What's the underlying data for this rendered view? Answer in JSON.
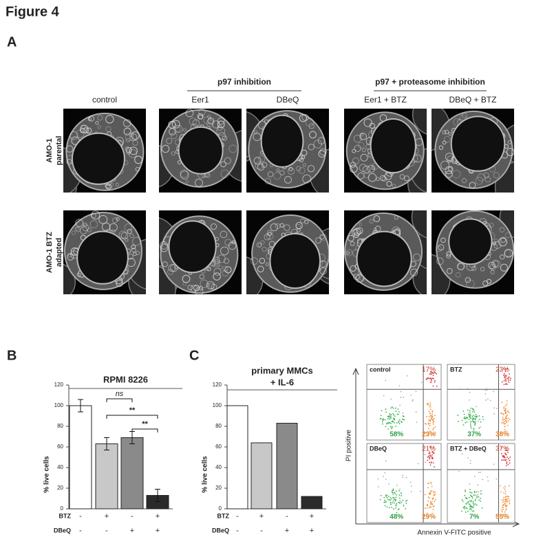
{
  "figure_title": "Figure 4",
  "panel_labels": [
    "A",
    "B",
    "C"
  ],
  "panel_a": {
    "group_headers": [
      "p97 inhibition",
      "p97 + proteasome inhibition"
    ],
    "columns": [
      "control",
      "Eer1",
      "DBeQ",
      "Eer1 + BTZ",
      "DBeQ + BTZ"
    ],
    "rows": [
      [
        "AMO-1",
        "parental"
      ],
      [
        "AMO-1 BTZ",
        "adapted"
      ]
    ]
  },
  "chart_data": [
    {
      "type": "bar",
      "title": "RPMI 8226",
      "ylabel": "% live cells",
      "categories": [
        null,
        null,
        null,
        null
      ],
      "values": [
        100,
        63,
        69,
        13
      ],
      "errors": [
        6,
        6,
        6,
        6
      ],
      "colors": [
        "#ffffff",
        "#c8c8c8",
        "#8a8a8a",
        "#2b2b2b"
      ],
      "ylim": [
        0,
        120
      ],
      "yticks": [
        0,
        20,
        40,
        60,
        80,
        100,
        120
      ],
      "significance": [
        "ns",
        "**",
        "**"
      ],
      "conditions": [
        {
          "name": "BTZ",
          "marks": [
            "-",
            "+",
            "-",
            "+"
          ]
        },
        {
          "name": "DBeQ",
          "marks": [
            "-",
            "-",
            "+",
            "+"
          ]
        }
      ]
    },
    {
      "type": "bar",
      "title": "primary MMCs",
      "subtitle": "+ IL-6",
      "ylabel": "% live cells",
      "categories": [
        null,
        null,
        null,
        null
      ],
      "values": [
        100,
        64,
        83,
        12
      ],
      "colors": [
        "#ffffff",
        "#c8c8c8",
        "#8a8a8a",
        "#2b2b2b"
      ],
      "ylim": [
        0,
        120
      ],
      "yticks": [
        0,
        20,
        40,
        60,
        80,
        100,
        120
      ],
      "conditions": [
        {
          "name": "BTZ",
          "marks": [
            "-",
            "+",
            "-",
            "+"
          ]
        },
        {
          "name": "DBeQ",
          "marks": [
            "-",
            "-",
            "+",
            "+"
          ]
        }
      ]
    }
  ],
  "flow": {
    "y_label": "PI positive",
    "x_label": "Annexin V-FITC positive",
    "plots": [
      {
        "label": "control",
        "upper_right": "17%",
        "lower_left": "58%",
        "lower_right": "23%"
      },
      {
        "label": "BTZ",
        "upper_right": "23%",
        "lower_left": "37%",
        "lower_right": "38%"
      },
      {
        "label": "DBeQ",
        "upper_right": "21%",
        "lower_left": "48%",
        "lower_right": "29%"
      },
      {
        "label": "BTZ + DBeQ",
        "upper_right": "37%",
        "lower_left": "7%",
        "lower_right": "55%"
      }
    ]
  }
}
